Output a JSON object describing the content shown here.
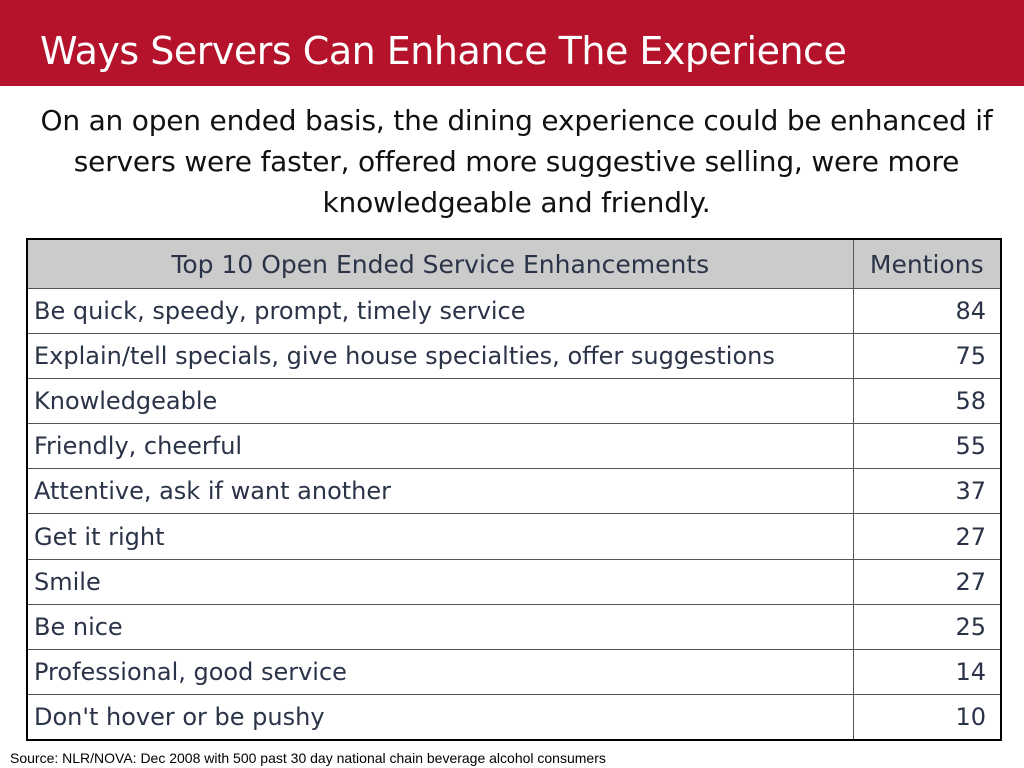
{
  "slide": {
    "title": "Ways Servers Can Enhance The Experience",
    "intro": "On an open ended basis, the dining experience could be enhanced if servers were faster, offered more suggestive selling, were more knowledgeable and friendly.",
    "accent_color": "#b5122b"
  },
  "table": {
    "headers": {
      "item": "Top 10 Open Ended Service Enhancements",
      "mentions": "Mentions"
    },
    "rows": [
      {
        "item": "Be quick, speedy, prompt, timely service",
        "mentions": "84"
      },
      {
        "item": "Explain/tell specials, give house specialties, offer suggestions",
        "mentions": "75"
      },
      {
        "item": "Knowledgeable",
        "mentions": "58"
      },
      {
        "item": "Friendly, cheerful",
        "mentions": "55"
      },
      {
        "item": "Attentive, ask if want another",
        "mentions": "37"
      },
      {
        "item": "Get it right",
        "mentions": "27"
      },
      {
        "item": "Smile",
        "mentions": "27"
      },
      {
        "item": "Be nice",
        "mentions": "25"
      },
      {
        "item": "Professional, good service",
        "mentions": "14"
      },
      {
        "item": "Don't hover or be pushy",
        "mentions": "10"
      }
    ]
  },
  "footer": {
    "source": "Source: NLR/NOVA:  Dec 2008 with 500 past 30 day national chain beverage alcohol consumers"
  }
}
